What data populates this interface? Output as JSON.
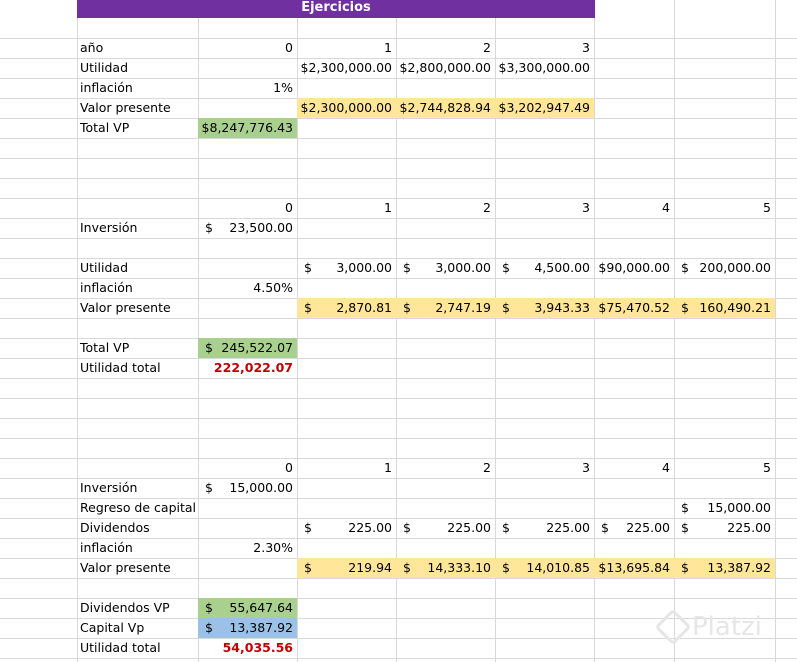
{
  "title": "Ejercicios",
  "ej1": {
    "header": {
      "label": "año",
      "y0": "0",
      "y1": "1",
      "y2": "2",
      "y3": "3"
    },
    "utilidad": {
      "label": "Utilidad",
      "v1": "$2,300,000.00",
      "v2": "$2,800,000.00",
      "v3": "$3,300,000.00"
    },
    "inflacion": {
      "label": "inflación",
      "value": "1%"
    },
    "vp": {
      "label": "Valor presente",
      "v1": "$2,300,000.00",
      "v2": "$2,744,828.94",
      "v3": "$3,202,947.49"
    },
    "total": {
      "label": "Total VP",
      "value": "$8,247,776.43"
    }
  },
  "ej2": {
    "header": {
      "y0": "0",
      "y1": "1",
      "y2": "2",
      "y3": "3",
      "y4": "4",
      "y5": "5"
    },
    "inversion": {
      "label": "Inversión",
      "amount": "23,500.00"
    },
    "utilidad": {
      "label": "Utilidad",
      "v1": "3,000.00",
      "v2": "3,000.00",
      "v3": "4,500.00",
      "v4": "$90,000.00",
      "v5": "200,000.00"
    },
    "inflacion": {
      "label": "inflación",
      "value": "4.50%"
    },
    "vp": {
      "label": "Valor presente",
      "v1": "2,870.81",
      "v2": "2,747.19",
      "v3": "3,943.33",
      "v4": "$75,470.52",
      "v5": "160,490.21"
    },
    "total": {
      "label": "Total VP",
      "amount": "245,522.07"
    },
    "utilidad_total": {
      "label": "Utilidad total",
      "value": "222,022.07"
    }
  },
  "ej3": {
    "header": {
      "y0": "0",
      "y1": "1",
      "y2": "2",
      "y3": "3",
      "y4": "4",
      "y5": "5"
    },
    "inversion": {
      "label": "Inversión",
      "amount": "15,000.00"
    },
    "regreso": {
      "label": "Regreso de capital",
      "v5": "15,000.00"
    },
    "dividendos": {
      "label": "Dividendos",
      "v1": "225.00",
      "v2": "225.00",
      "v3": "225.00",
      "v4": "225.00",
      "v5": "225.00"
    },
    "inflacion": {
      "label": "inflación",
      "value": "2.30%"
    },
    "vp": {
      "label": "Valor presente",
      "v1": "219.94",
      "v2": "14,333.10",
      "v3": "14,010.85",
      "v4": "$13,695.84",
      "v5": "13,387.92"
    },
    "dividendos_vp": {
      "label": "Dividendos VP",
      "amount": "55,647.64"
    },
    "capital_vp": {
      "label": "Capital Vp",
      "amount": "13,387.92"
    },
    "utilidad_total": {
      "label": "Utilidad total",
      "value": "54,035.56"
    }
  },
  "currency_symbol": "$",
  "watermark": "Platzi",
  "colors": {
    "title_bg": "#7030a0",
    "highlight_yellow": "#ffe699",
    "total_green": "#a9d08e",
    "capital_blue": "#9bc2e6",
    "negative_red": "#c00000",
    "gridline": "#d9d9d9"
  }
}
